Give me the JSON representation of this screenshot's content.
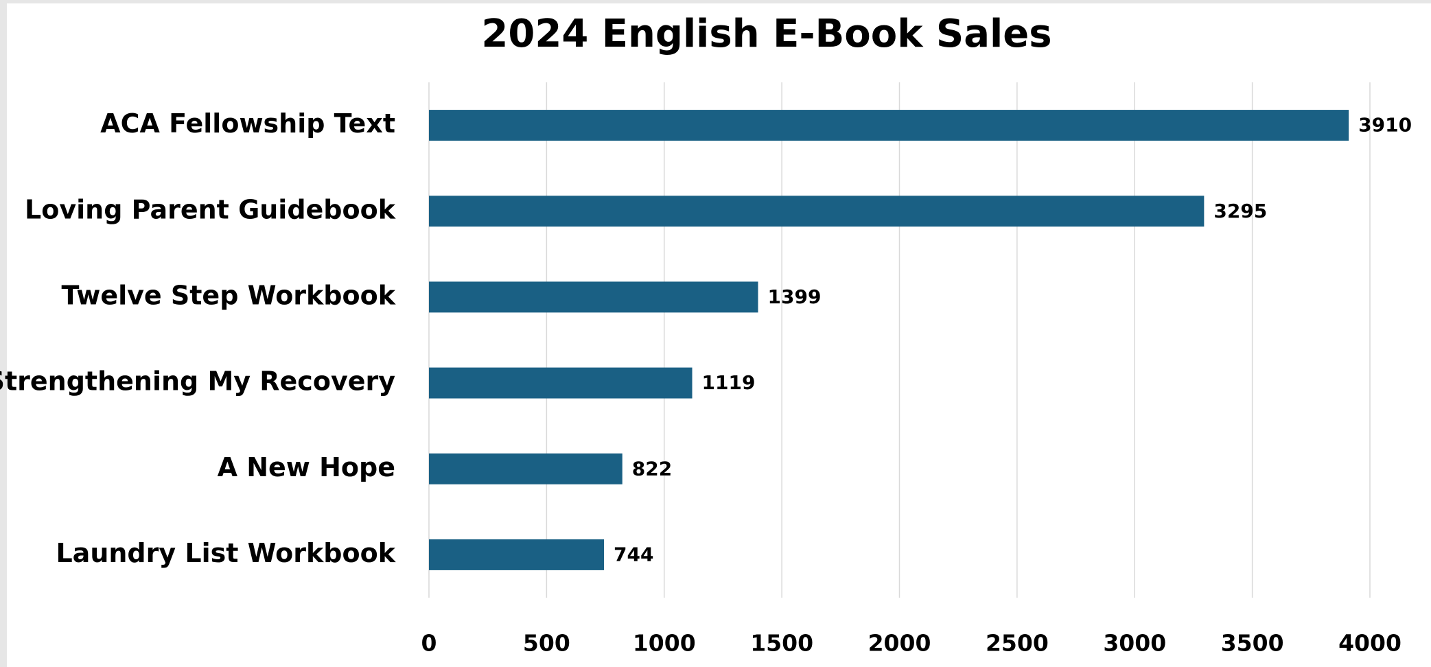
{
  "chart_data": {
    "type": "barh",
    "title": "2024 English E-Book Sales",
    "categories": [
      "ACA Fellowship Text",
      "Loving Parent Guidebook",
      "Twelve Step Workbook",
      "Strengthening My Recovery",
      "A New Hope",
      "Laundry List Workbook"
    ],
    "values": [
      3910,
      3295,
      1399,
      1119,
      822,
      744
    ],
    "color": "#1a6084",
    "xlim": [
      0,
      4000
    ],
    "xticks": [
      0,
      500,
      1000,
      1500,
      2000,
      2500,
      3000,
      3500,
      4000
    ],
    "grid": true
  }
}
